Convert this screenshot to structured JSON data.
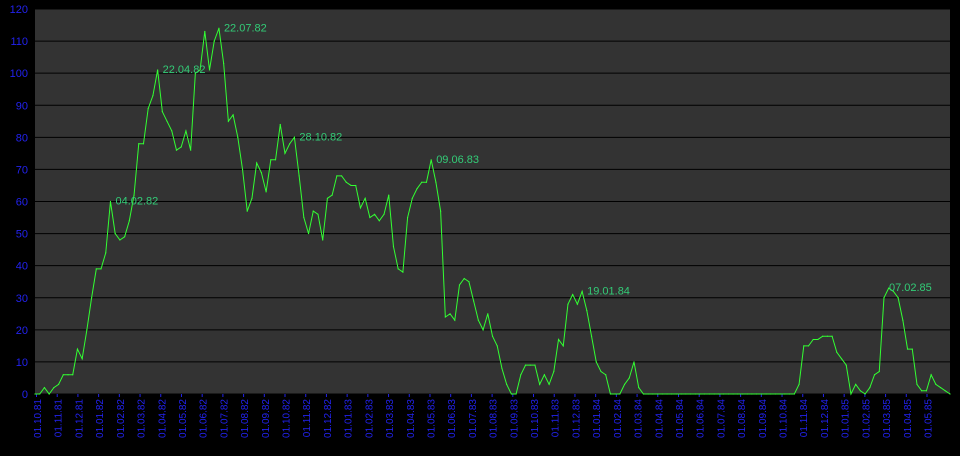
{
  "colors": {
    "page_background": "#000000",
    "plot_background": "#333333",
    "grid_line": "#000000",
    "line": "#33ff33",
    "axis_labels": "#2222ee",
    "peak_labels": "#33cc77"
  },
  "chart_data": {
    "type": "line",
    "title": "",
    "xlabel": "",
    "ylabel": "",
    "ylim": [
      0,
      120
    ],
    "yticks": [
      0,
      10,
      20,
      30,
      40,
      50,
      60,
      70,
      80,
      90,
      100,
      110,
      120
    ],
    "grid": "horizontal",
    "legend": "none",
    "x_tick_labels": [
      "01.10.81",
      "01.11.81",
      "01.12.81",
      "01.01.82",
      "01.02.82",
      "01.03.82",
      "01.04.82",
      "01.05.82",
      "01.06.82",
      "01.07.82",
      "01.08.82",
      "01.09.82",
      "01.10.82",
      "01.11.82",
      "01.12.82",
      "01.01.83",
      "01.02.83",
      "01.03.83",
      "01.04.83",
      "01.05.83",
      "01.06.83",
      "01.07.83",
      "01.08.83",
      "01.09.83",
      "01.10.83",
      "01.11.83",
      "01.12.83",
      "01.01.84",
      "01.02.84",
      "01.03.84",
      "01.04.84",
      "01.05.84",
      "01.06.84",
      "01.07.84",
      "01.08.84",
      "01.09.84",
      "01.10.84",
      "01.11.84",
      "01.12.84",
      "01.01.85",
      "01.02.85",
      "01.03.85",
      "01.04.85",
      "01.05.85"
    ],
    "series": [
      {
        "values": [
          0,
          0,
          2,
          0,
          2,
          3,
          6,
          6,
          6,
          14,
          11,
          20,
          30,
          39,
          39,
          44,
          60,
          50,
          48,
          49,
          54,
          62,
          78,
          78,
          89,
          93,
          101,
          88,
          85,
          82,
          76,
          77,
          82,
          76,
          100,
          101,
          113,
          101,
          110,
          114,
          103,
          85,
          87,
          80,
          70,
          57,
          61,
          72,
          69,
          63,
          73,
          73,
          84,
          75,
          78,
          80,
          68,
          55,
          50,
          57,
          56,
          48,
          61,
          62,
          68,
          68,
          66,
          65,
          65,
          58,
          61,
          55,
          56,
          54,
          56,
          62,
          46,
          39,
          38,
          55,
          61,
          64,
          66,
          66,
          73,
          66,
          57,
          24,
          25,
          23,
          34,
          36,
          35,
          29,
          23,
          20,
          25,
          18,
          15,
          8,
          3,
          0,
          0,
          6,
          9,
          9,
          9,
          3,
          6,
          3,
          7,
          17,
          15,
          28,
          31,
          28,
          32,
          26,
          18,
          10,
          7,
          6,
          0,
          0,
          0,
          3,
          5,
          10,
          2,
          0,
          0,
          0,
          0,
          0,
          0,
          0,
          0,
          0,
          0,
          0,
          0,
          0,
          0,
          0,
          0,
          0,
          0,
          0,
          0,
          0,
          0,
          0,
          0,
          0,
          0,
          0,
          0,
          0,
          0,
          0,
          0,
          0,
          3,
          15,
          15,
          17,
          17,
          18,
          18,
          18,
          13,
          11,
          9,
          0,
          3,
          1,
          0,
          2,
          6,
          7,
          30,
          33,
          32,
          30,
          23,
          14,
          14,
          3,
          1,
          1,
          6,
          3,
          2,
          1,
          0
        ]
      }
    ],
    "annotations": [
      {
        "index": 16,
        "value": 60,
        "label": "04.02.82"
      },
      {
        "index": 26,
        "value": 101,
        "label": "22.04.82"
      },
      {
        "index": 39,
        "value": 114,
        "label": "22.07.82"
      },
      {
        "index": 55,
        "value": 80,
        "label": "28.10.82"
      },
      {
        "index": 84,
        "value": 73,
        "label": "09.06.83"
      },
      {
        "index": 116,
        "value": 32,
        "label": "19.01.84"
      },
      {
        "index": 180,
        "value": 33,
        "label": "07.02.85"
      }
    ]
  }
}
